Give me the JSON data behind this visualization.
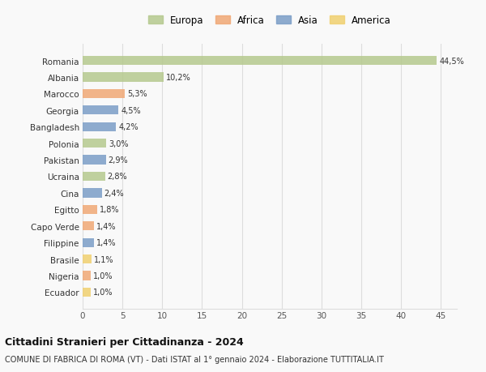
{
  "countries": [
    "Romania",
    "Albania",
    "Marocco",
    "Georgia",
    "Bangladesh",
    "Polonia",
    "Pakistan",
    "Ucraina",
    "Cina",
    "Egitto",
    "Capo Verde",
    "Filippine",
    "Brasile",
    "Nigeria",
    "Ecuador"
  ],
  "values": [
    44.5,
    10.2,
    5.3,
    4.5,
    4.2,
    3.0,
    2.9,
    2.8,
    2.4,
    1.8,
    1.4,
    1.4,
    1.1,
    1.0,
    1.0
  ],
  "labels": [
    "44,5%",
    "10,2%",
    "5,3%",
    "4,5%",
    "4,2%",
    "3,0%",
    "2,9%",
    "2,8%",
    "2,4%",
    "1,8%",
    "1,4%",
    "1,4%",
    "1,1%",
    "1,0%",
    "1,0%"
  ],
  "continents": [
    "Europa",
    "Europa",
    "Africa",
    "Asia",
    "Asia",
    "Europa",
    "Asia",
    "Europa",
    "Asia",
    "Africa",
    "Africa",
    "Asia",
    "America",
    "Africa",
    "America"
  ],
  "colors": {
    "Europa": "#b5c98e",
    "Africa": "#f0a875",
    "Asia": "#7b9ec7",
    "America": "#f0d070"
  },
  "title": "Cittadini Stranieri per Cittadinanza - 2024",
  "subtitle": "COMUNE DI FABRICA DI ROMA (VT) - Dati ISTAT al 1° gennaio 2024 - Elaborazione TUTTITALIA.IT",
  "xlim": [
    0,
    47
  ],
  "xticks": [
    0,
    5,
    10,
    15,
    20,
    25,
    30,
    35,
    40,
    45
  ],
  "background_color": "#f9f9f9",
  "grid_color": "#dddddd"
}
